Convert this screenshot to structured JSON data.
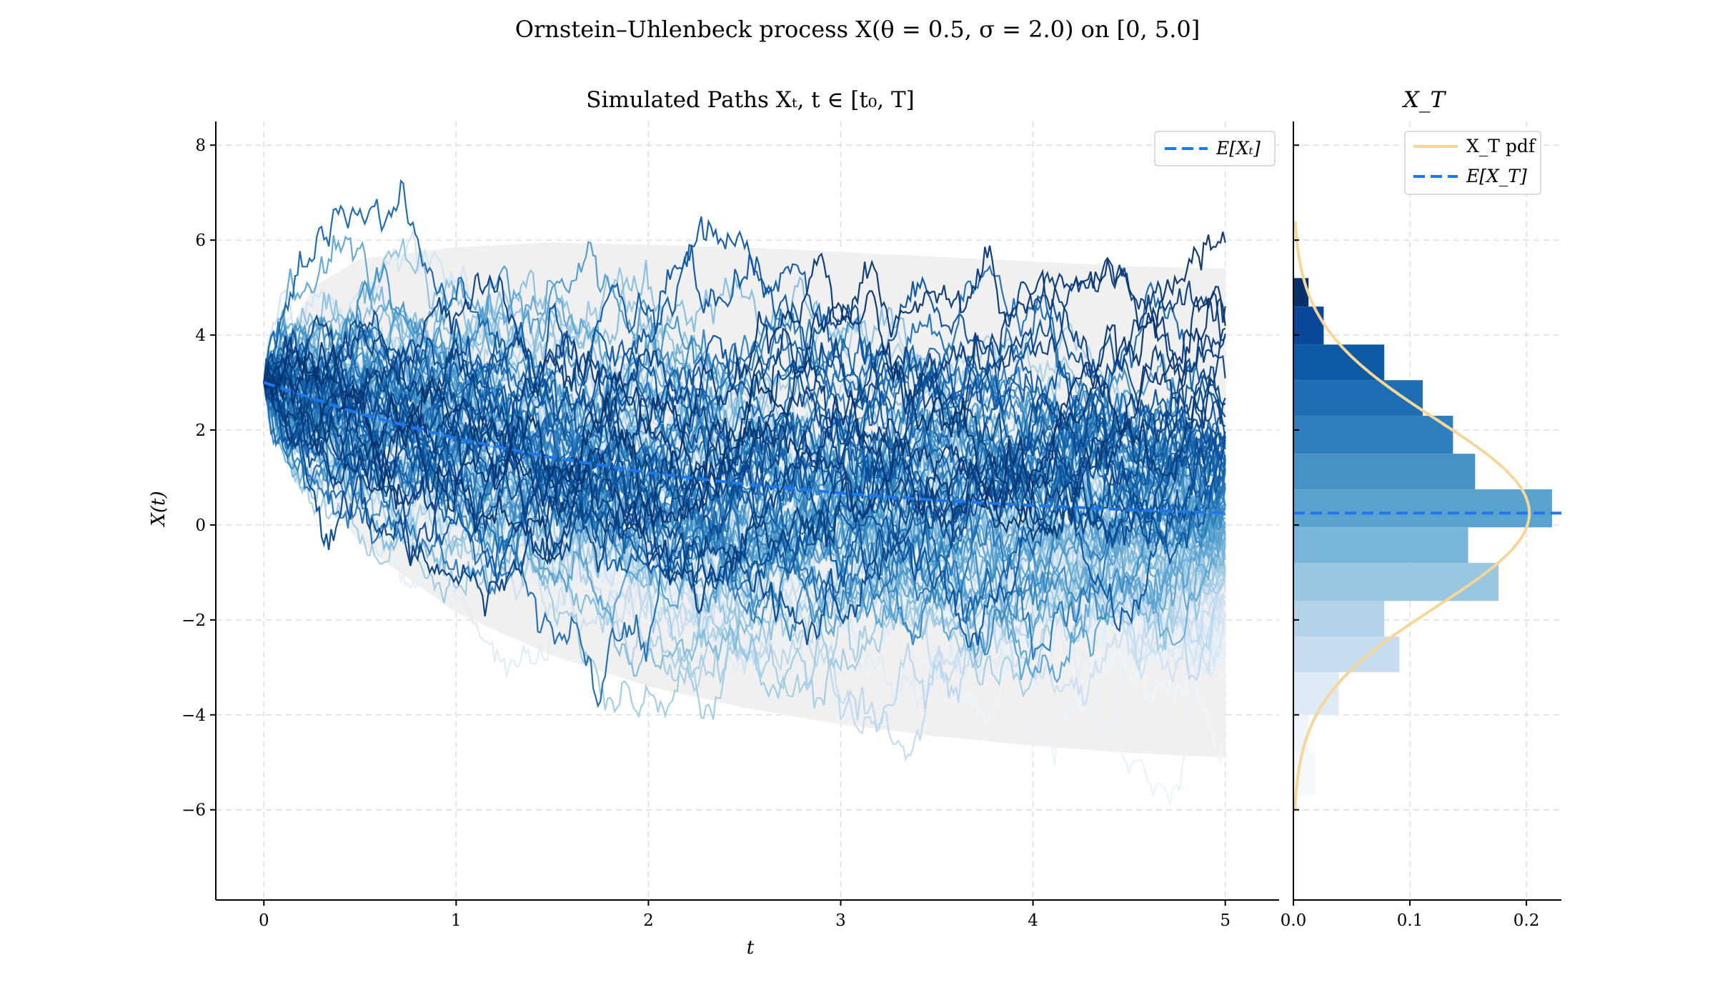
{
  "figure": {
    "suptitle": "Ornstein–Uhlenbeck process X(θ = 0.5, σ = 2.0) on [0, 5.0]"
  },
  "chart_data": [
    {
      "type": "line",
      "title": "Simulated Paths Xₜ, t ∈ [t₀, T]",
      "xlabel": "t",
      "ylabel": "X(t)",
      "xlim": [
        -0.25,
        5.28
      ],
      "ylim": [
        -7.9,
        8.5
      ],
      "xticks": [
        0,
        1,
        2,
        3,
        4,
        5
      ],
      "yticks": [
        -6,
        -4,
        -2,
        0,
        2,
        4,
        6,
        8
      ],
      "xtick_labels": [
        "0",
        "1",
        "2",
        "3",
        "4",
        "5"
      ],
      "ytick_labels": [
        "−6",
        "−4",
        "−2",
        "0",
        "2",
        "4",
        "6",
        "8"
      ],
      "grid": true,
      "legend_position": "top-right",
      "process": {
        "x0": 3.0,
        "theta": 0.5,
        "sigma": 2.0,
        "mu": 0.0,
        "t_start": 0,
        "t_end": 5.0
      },
      "series": [
        {
          "name": "E[Xₜ]",
          "style": "dashed",
          "color": "#1f77f0",
          "x": [
            0,
            0.5,
            1,
            1.5,
            2,
            2.5,
            3,
            3.5,
            4,
            4.5,
            5
          ],
          "values": [
            3.0,
            2.34,
            1.82,
            1.42,
            1.1,
            0.86,
            0.67,
            0.52,
            0.41,
            0.32,
            0.25
          ]
        },
        {
          "name": "Simulated paths",
          "style": "solid",
          "colormap": "Blues",
          "count": 100
        }
      ],
      "confidence_band": {
        "x": [
          0,
          0.25,
          0.5,
          1,
          1.5,
          2,
          2.5,
          3,
          3.5,
          4,
          4.5,
          5
        ],
        "upper": [
          3.0,
          5.0,
          5.6,
          5.85,
          5.95,
          5.9,
          5.85,
          5.75,
          5.65,
          5.55,
          5.45,
          5.4
        ],
        "lower": [
          3.0,
          1.0,
          -0.4,
          -1.85,
          -2.75,
          -3.4,
          -3.85,
          -4.2,
          -4.45,
          -4.65,
          -4.8,
          -4.9
        ],
        "color": "#f0f0f0"
      }
    },
    {
      "type": "bar",
      "orientation": "horizontal",
      "title": "X_T",
      "xlim": [
        0,
        0.23
      ],
      "xticks": [
        0.0,
        0.1,
        0.2
      ],
      "xtick_labels": [
        "0.0",
        "0.1",
        "0.2"
      ],
      "grid": true,
      "legend_position": "top-right",
      "bins": [
        {
          "y0": 4.6,
          "y1": 5.2,
          "density": 0.013,
          "color": "#08306b"
        },
        {
          "y0": 3.8,
          "y1": 4.6,
          "density": 0.026,
          "color": "#08479a"
        },
        {
          "y0": 3.05,
          "y1": 3.8,
          "density": 0.078,
          "color": "#0d5aa7"
        },
        {
          "y0": 2.3,
          "y1": 3.05,
          "density": 0.111,
          "color": "#1f6eb4"
        },
        {
          "y0": 1.5,
          "y1": 2.3,
          "density": 0.137,
          "color": "#2f7fbd"
        },
        {
          "y0": 0.75,
          "y1": 1.5,
          "density": 0.156,
          "color": "#4592c7"
        },
        {
          "y0": -0.05,
          "y1": 0.75,
          "density": 0.222,
          "color": "#5aa2d0"
        },
        {
          "y0": -0.8,
          "y1": -0.05,
          "density": 0.15,
          "color": "#79b5d9"
        },
        {
          "y0": -1.6,
          "y1": -0.8,
          "density": 0.176,
          "color": "#99c6e1"
        },
        {
          "y0": -2.35,
          "y1": -1.6,
          "density": 0.078,
          "color": "#b3d3e9"
        },
        {
          "y0": -3.1,
          "y1": -2.35,
          "density": 0.091,
          "color": "#c8dcf0"
        },
        {
          "y0": -4.0,
          "y1": -3.1,
          "density": 0.039,
          "color": "#deebf7"
        },
        {
          "y0": -4.8,
          "y1": -4.0,
          "density": 0.013,
          "color": "#eff5fb"
        },
        {
          "y0": -5.7,
          "y1": -4.8,
          "density": 0.019,
          "color": "#f5f9fe"
        }
      ],
      "series": [
        {
          "name": "X_T pdf",
          "style": "solid",
          "color": "#f6d699",
          "mean": 0.25,
          "std": 1.97
        },
        {
          "name": "E[X_T]",
          "style": "dashed",
          "color": "#1f77f0",
          "value": 0.25
        }
      ]
    }
  ]
}
